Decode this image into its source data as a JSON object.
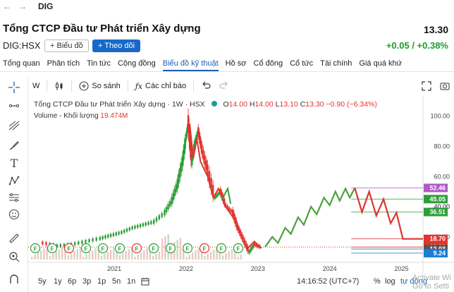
{
  "topnav": {
    "back": "←",
    "forward": "→",
    "ticker": "DIG"
  },
  "header": {
    "company": "Tổng CTCP Đầu tư Phát triển Xây dựng",
    "price": "13.30"
  },
  "subheader": {
    "code": "DIG:HSX",
    "chart_btn": "+ Biểu đồ",
    "follow_btn": "+ Theo dõi",
    "change": "+0.05 / +0.38%"
  },
  "tabs": [
    "Tổng quan",
    "Phân tích",
    "Tin tức",
    "Cộng đồng",
    "Biểu đồ kỹ thuật",
    "Hồ sơ",
    "Cổ đông",
    "Cổ tức",
    "Tài chính",
    "Giá quá khứ"
  ],
  "active_tab": "Biểu đồ kỹ thuật",
  "toolbar": {
    "interval": "W",
    "compare": "So sánh",
    "indicators": "Các chỉ báo"
  },
  "legend": {
    "title": "Tổng CTCP Đầu tư Phát triển Xây dựng · 1W · HSX",
    "o_lbl": "O",
    "o": "14.00",
    "h_lbl": "H",
    "h": "14.00",
    "l_lbl": "L",
    "l": "13.10",
    "c_lbl": "C",
    "c": "13.30",
    "chg": "−0.90 (−6.34%)",
    "volume_label": "Volume - Khối lượng",
    "volume_value": "19.474M"
  },
  "bottom": {
    "ranges": [
      "5y",
      "1y",
      "6p",
      "3p",
      "1p",
      "5n",
      "1n"
    ],
    "time": "14:16:52 (UTC+7)",
    "pct": "%",
    "log": "log",
    "auto": "tự động"
  },
  "watermark": {
    "line1": "Activate Wi",
    "line2": "Go to Setti"
  },
  "colors": {
    "up": "#2e9e3a",
    "down": "#e0342f",
    "accent": "#1f5fb0",
    "follow": "#1669c9"
  },
  "chart_data": {
    "type": "line",
    "x_ticks": [
      "2021",
      "2022",
      "2023",
      "2024",
      "2025"
    ],
    "y_ticks": [
      100.0,
      80.0,
      60.0,
      40.0,
      20.0
    ],
    "ylim": [
      5,
      105
    ],
    "price_levels": [
      {
        "value": 52.46,
        "label": "52.46",
        "color": "#b259c9"
      },
      {
        "value": 45.05,
        "label": "45.05",
        "color": "#2e9e3a"
      },
      {
        "value": 36.51,
        "label": "36.51",
        "color": "#2e9e3a"
      },
      {
        "value": 18.7,
        "label": "18.70",
        "color": "#e0342f"
      },
      {
        "value": 13.3,
        "label": "13.30",
        "color": "#e0342f"
      },
      {
        "value": 12.03,
        "label": "12.03",
        "color": "#555555"
      },
      {
        "value": 9.24,
        "label": "9.24",
        "color": "#1e7bd6"
      }
    ],
    "hidden_label": "40.00",
    "historical": [
      [
        2020.0,
        16
      ],
      [
        2020.2,
        14
      ],
      [
        2020.4,
        15
      ],
      [
        2020.6,
        17
      ],
      [
        2020.8,
        19
      ],
      [
        2020.95,
        21
      ],
      [
        2021.1,
        23
      ],
      [
        2021.25,
        26
      ],
      [
        2021.4,
        28
      ],
      [
        2021.55,
        30
      ],
      [
        2021.7,
        36
      ],
      [
        2021.8,
        44
      ],
      [
        2021.88,
        55
      ],
      [
        2021.95,
        70
      ],
      [
        2022.0,
        86
      ],
      [
        2022.03,
        95
      ],
      [
        2022.08,
        70
      ],
      [
        2022.12,
        82
      ],
      [
        2022.17,
        90
      ],
      [
        2022.22,
        78
      ],
      [
        2022.3,
        64
      ],
      [
        2022.4,
        46
      ],
      [
        2022.48,
        50
      ],
      [
        2022.55,
        41
      ],
      [
        2022.65,
        36
      ],
      [
        2022.72,
        26
      ],
      [
        2022.8,
        18
      ],
      [
        2022.88,
        10
      ],
      [
        2022.95,
        15
      ],
      [
        2023.05,
        13
      ]
    ],
    "bull_path": [
      [
        2023.1,
        13.3
      ],
      [
        2023.2,
        20
      ],
      [
        2023.28,
        16
      ],
      [
        2023.38,
        26
      ],
      [
        2023.46,
        22
      ],
      [
        2023.56,
        33
      ],
      [
        2023.64,
        28
      ],
      [
        2023.74,
        40
      ],
      [
        2023.82,
        35
      ],
      [
        2023.92,
        46
      ],
      [
        2024.0,
        41
      ],
      [
        2024.08,
        50
      ],
      [
        2024.14,
        44
      ],
      [
        2024.22,
        52
      ],
      [
        2024.28,
        46
      ],
      [
        2024.35,
        52.46
      ]
    ],
    "bear_path": [
      [
        2024.35,
        52.46
      ],
      [
        2024.45,
        36.5
      ],
      [
        2024.55,
        50
      ],
      [
        2024.65,
        34
      ],
      [
        2024.75,
        45
      ],
      [
        2024.85,
        29
      ],
      [
        2024.93,
        36
      ],
      [
        2025.02,
        18.7
      ],
      [
        2025.3,
        18.7
      ]
    ],
    "events": [
      "F",
      "F",
      "F",
      "F",
      "F",
      "F",
      "F",
      "F",
      "F",
      "F",
      "F",
      "F",
      "F"
    ]
  }
}
